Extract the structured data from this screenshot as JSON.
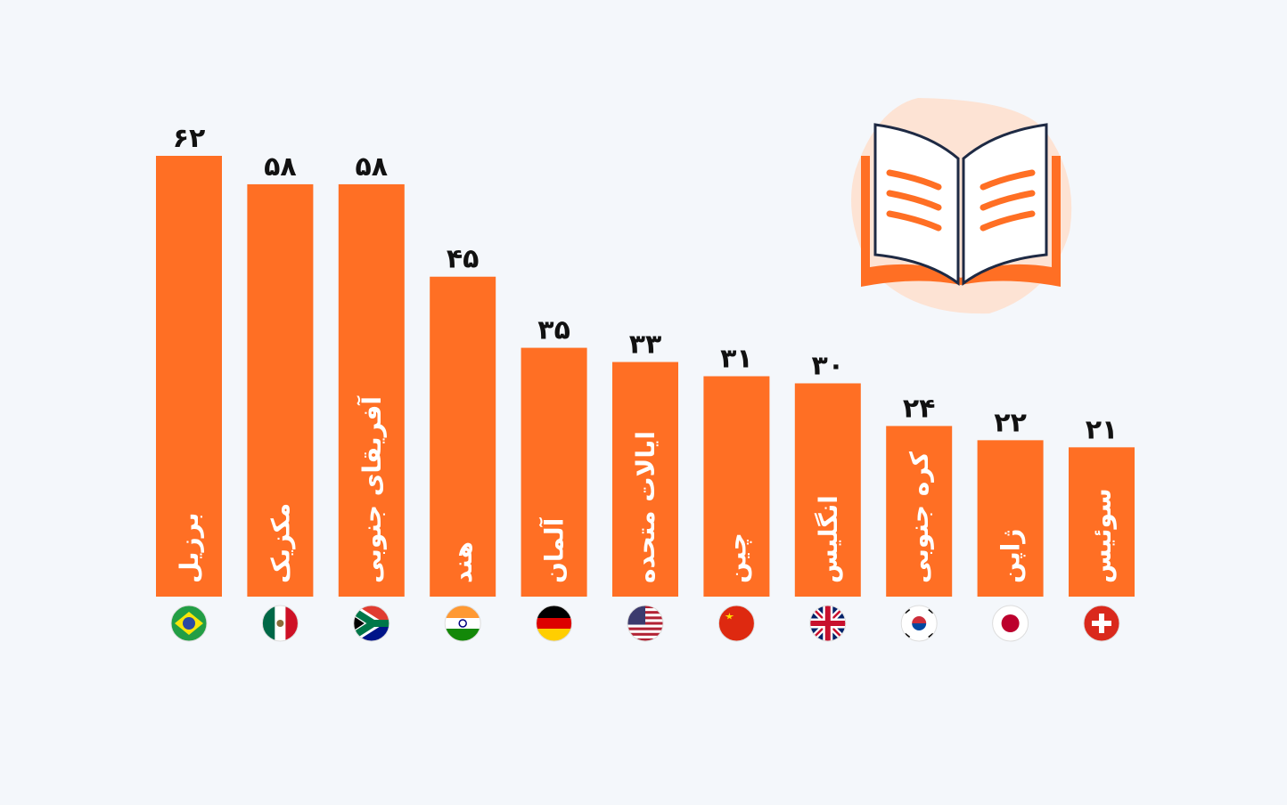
{
  "chart_data": {
    "type": "bar",
    "categories": [
      "برزیل",
      "مکزیک",
      "آفریقای جنوبی",
      "هند",
      "آلمان",
      "ایالات متحده",
      "چین",
      "انگلیس",
      "کره جنوبی",
      "ژاپن",
      "سوئیس"
    ],
    "values": [
      62,
      58,
      58,
      45,
      35,
      33,
      31,
      30,
      24,
      22,
      21
    ],
    "value_labels": [
      "۶۲",
      "۵۸",
      "۵۸",
      "۴۵",
      "۳۵",
      "۳۳",
      "۳۱",
      "۳۰",
      "۲۴",
      "۲۲",
      "۲۱"
    ],
    "color": "#ff6f24"
  }
}
